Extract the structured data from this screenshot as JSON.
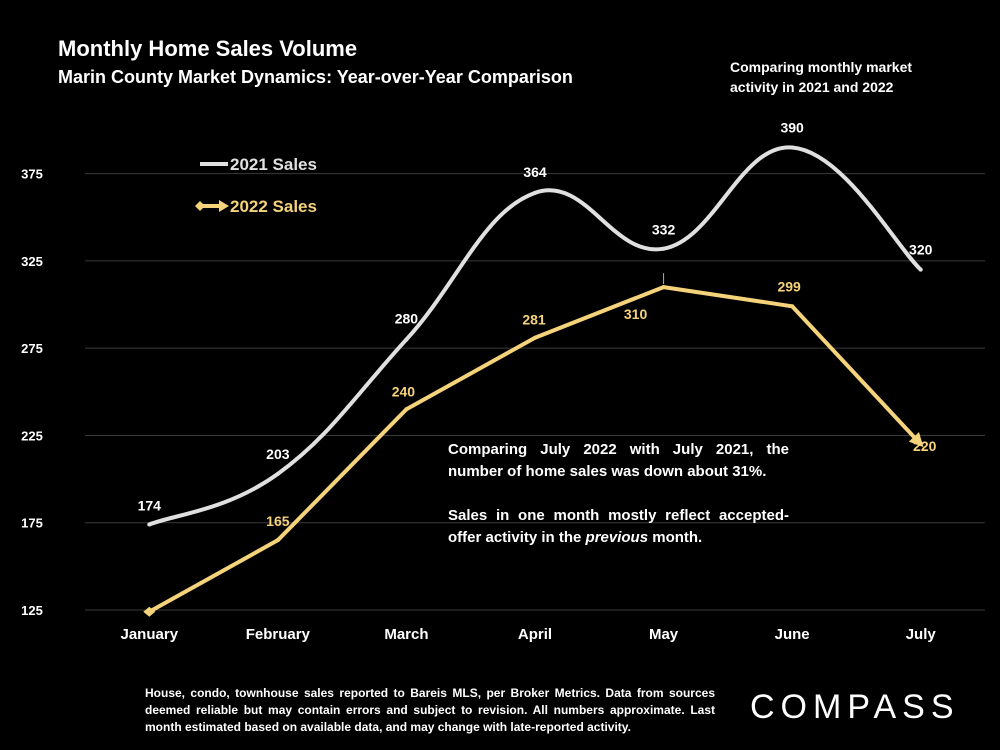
{
  "header": {
    "title": "Monthly Home Sales Volume",
    "subtitle": "Marin County Market Dynamics: Year-over-Year Comparison",
    "side_note": "Comparing monthly market activity in 2021 and 2022"
  },
  "annotation": {
    "para1": "Comparing July 2022 with July 2021, the number of home sales was down about 31%.",
    "para2_before": "Sales in one month mostly reflect accepted-offer activity in the ",
    "para2_em": "previous",
    "para2_after": " month."
  },
  "footer": {
    "note": "House, condo, townhouse sales reported to Bareis MLS, per Broker Metrics. Data from sources deemed reliable but may contain errors and subject to revision. All numbers approximate. Last month estimated based on available data, and may change with late-reported activity.",
    "logo": "COMPASS"
  },
  "colors": {
    "background": "#000000",
    "series_2021": "#e0e0e0",
    "series_2022": "#f5d37a",
    "text": "#ffffff",
    "grid": "#3a3a3a"
  },
  "chart_data": {
    "type": "line",
    "categories": [
      "January",
      "February",
      "March",
      "April",
      "May",
      "June",
      "July"
    ],
    "y_ticks": [
      "125",
      "175",
      "225",
      "275",
      "325",
      "375"
    ],
    "ylim": [
      125,
      400
    ],
    "grid": true,
    "legend_position": "top-left",
    "series": [
      {
        "name": "2021 Sales",
        "values": [
          174,
          203,
          280,
          364,
          332,
          390,
          320
        ],
        "labels": [
          "174",
          "203",
          "280",
          "364",
          "332",
          "390",
          "320"
        ],
        "smooth": true,
        "color": "#e0e0e0"
      },
      {
        "name": "2022 Sales",
        "values": [
          124,
          165,
          240,
          281,
          310,
          299,
          220
        ],
        "labels": [
          "",
          "165",
          "240",
          "281",
          "310",
          "299",
          "220"
        ],
        "smooth": false,
        "arrow_end": true,
        "color": "#f5d37a"
      }
    ]
  }
}
